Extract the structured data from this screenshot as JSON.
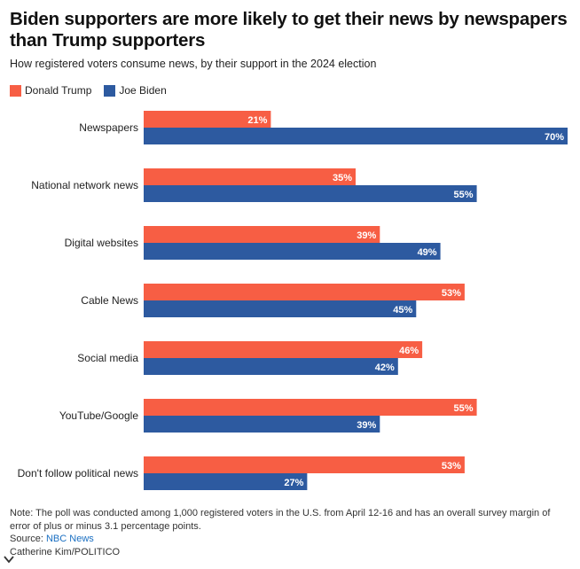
{
  "title": "Biden supporters are more likely to get their news by newspapers than Trump supporters",
  "subtitle": "How registered voters consume news, by their support in the 2024 election",
  "legend": [
    {
      "label": "Donald Trump",
      "color": "#f75e44"
    },
    {
      "label": "Joe Biden",
      "color": "#2d5aa0"
    }
  ],
  "chart_data": {
    "type": "bar",
    "orientation": "horizontal",
    "categories": [
      "Newspapers",
      "National network news",
      "Digital websites",
      "Cable News",
      "Social media",
      "YouTube/Google",
      "Don't follow political news"
    ],
    "series": [
      {
        "name": "Donald Trump",
        "color": "#f75e44",
        "values": [
          21,
          35,
          39,
          53,
          46,
          55,
          53
        ]
      },
      {
        "name": "Joe Biden",
        "color": "#2d5aa0",
        "values": [
          70,
          55,
          49,
          45,
          42,
          39,
          27
        ]
      }
    ],
    "value_suffix": "%",
    "xlim": [
      0,
      70
    ],
    "grid": false,
    "legend_position": "top-left"
  },
  "footer": {
    "note": "Note: The poll was conducted among 1,000 registered voters in the U.S. from April 12-16 and has an overall survey margin of error of plus or minus 3.1 percentage points.",
    "source_label": "Source:",
    "source_link": "NBC News",
    "credit": "Catherine Kim/POLITICO"
  }
}
